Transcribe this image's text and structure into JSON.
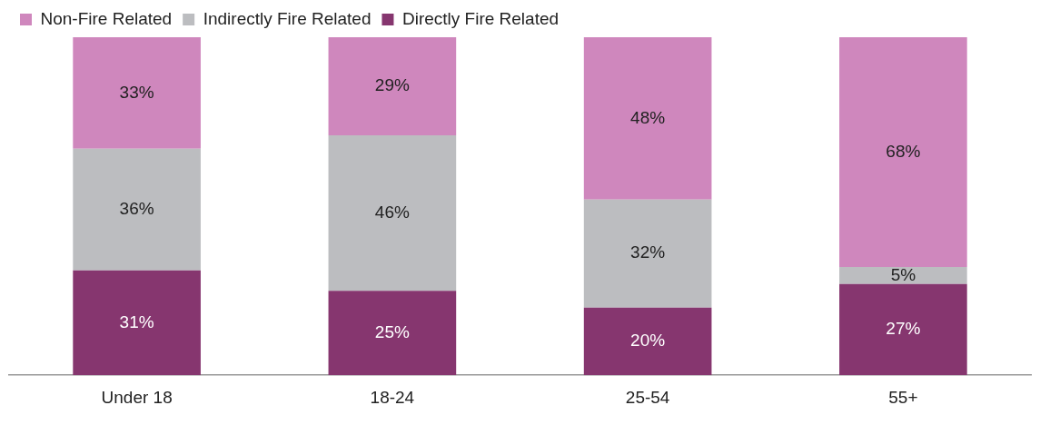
{
  "chart_data": {
    "type": "bar",
    "stacked": true,
    "categories": [
      "Under 18",
      "18-24",
      "25-54",
      "55+"
    ],
    "series": [
      {
        "name": "Directly Fire Related",
        "color": "#86366f",
        "values": [
          31,
          25,
          20,
          27
        ],
        "value_labels": [
          "31%",
          "25%",
          "20%",
          "27%"
        ]
      },
      {
        "name": "Indirectly Fire Related",
        "color": "#bcbdc0",
        "values": [
          36,
          46,
          32,
          5
        ],
        "value_labels": [
          "36%",
          "46%",
          "32%",
          "5%"
        ]
      },
      {
        "name": "Non-Fire Related",
        "color": "#cf87bd",
        "values": [
          33,
          29,
          48,
          68
        ],
        "value_labels": [
          "33%",
          "29%",
          "48%",
          "68%"
        ]
      }
    ],
    "legend": "top left",
    "grid": false,
    "tick_labels": "x"
  }
}
